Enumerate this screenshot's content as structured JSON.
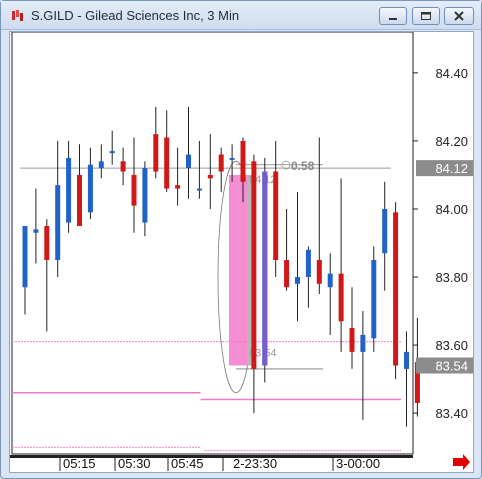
{
  "window": {
    "title": "S.GILD - Gilead Sciences Inc, 3 Min"
  },
  "price_tags": {
    "last": "84.12",
    "marker": "83.54"
  },
  "measure": {
    "top_label": "84.12",
    "bottom_label": "83.54",
    "diff_label": "0.58"
  },
  "colors": {
    "up": "#1f63c9",
    "down": "#d01818",
    "pink": "#f279c9",
    "tag_bg": "#8c8c8c",
    "ref_line": "#9a9a9a"
  },
  "chart_data": {
    "type": "candlestick",
    "y_ticks": [
      84.4,
      84.2,
      84.0,
      83.8,
      83.6,
      83.4
    ],
    "y_tick_labels": [
      "84.40",
      "84.20",
      "84.00",
      "83.80",
      "83.60",
      "83.40"
    ],
    "x_tick_labels": [
      "05:15",
      "05:30",
      "05:45",
      "2-23:30",
      "3-00:00"
    ],
    "ylim": [
      83.28,
      84.52
    ],
    "reference_line": 84.12,
    "candles": [
      {
        "o": 83.77,
        "h": 83.95,
        "l": 83.69,
        "c": 83.95
      },
      {
        "o": 83.93,
        "h": 84.06,
        "l": 83.84,
        "c": 83.94
      },
      {
        "o": 83.95,
        "h": 83.97,
        "l": 83.64,
        "c": 83.85
      },
      {
        "o": 83.85,
        "h": 84.2,
        "l": 83.8,
        "c": 84.07
      },
      {
        "o": 83.96,
        "h": 84.2,
        "l": 83.93,
        "c": 84.15
      },
      {
        "o": 84.1,
        "h": 84.19,
        "l": 83.96,
        "c": 83.95
      },
      {
        "o": 83.99,
        "h": 84.18,
        "l": 83.97,
        "c": 84.13
      },
      {
        "o": 84.12,
        "h": 84.19,
        "l": 84.09,
        "c": 84.14
      },
      {
        "o": 84.17,
        "h": 84.23,
        "l": 84.13,
        "c": 84.17
      },
      {
        "o": 84.14,
        "h": 84.18,
        "l": 84.07,
        "c": 84.11
      },
      {
        "o": 84.1,
        "h": 84.21,
        "l": 83.93,
        "c": 84.01
      },
      {
        "o": 83.96,
        "h": 84.14,
        "l": 83.92,
        "c": 84.12
      },
      {
        "o": 84.22,
        "h": 84.3,
        "l": 84.09,
        "c": 84.11
      },
      {
        "o": 84.21,
        "h": 84.29,
        "l": 84.05,
        "c": 84.06
      },
      {
        "o": 84.07,
        "h": 84.18,
        "l": 84.01,
        "c": 84.06
      },
      {
        "o": 84.12,
        "h": 84.3,
        "l": 84.03,
        "c": 84.16
      },
      {
        "o": 84.06,
        "h": 84.2,
        "l": 84.03,
        "c": 84.06
      },
      {
        "o": 84.1,
        "h": 84.22,
        "l": 84.0,
        "c": 84.09
      },
      {
        "o": 84.16,
        "h": 84.18,
        "l": 84.05,
        "c": 84.11
      },
      {
        "o": 84.15,
        "h": 84.19,
        "l": 84.08,
        "c": 84.15
      },
      {
        "o": 84.2,
        "h": 84.21,
        "l": 84.02,
        "c": 84.08
      },
      {
        "o": 84.14,
        "h": 84.16,
        "l": 83.4,
        "c": 83.53
      },
      {
        "o": 83.54,
        "h": 84.15,
        "l": 83.49,
        "c": 84.11
      },
      {
        "o": 84.11,
        "h": 84.2,
        "l": 83.8,
        "c": 83.85
      },
      {
        "o": 83.85,
        "h": 84.0,
        "l": 83.76,
        "c": 83.77
      },
      {
        "o": 83.78,
        "h": 84.05,
        "l": 83.67,
        "c": 83.8
      },
      {
        "o": 83.8,
        "h": 83.89,
        "l": 83.71,
        "c": 83.88
      },
      {
        "o": 83.85,
        "h": 84.21,
        "l": 83.75,
        "c": 83.78
      },
      {
        "o": 83.77,
        "h": 83.87,
        "l": 83.63,
        "c": 83.81
      },
      {
        "o": 83.81,
        "h": 84.09,
        "l": 83.58,
        "c": 83.67
      },
      {
        "o": 83.65,
        "h": 83.77,
        "l": 83.53,
        "c": 83.58
      },
      {
        "o": 83.58,
        "h": 83.7,
        "l": 83.38,
        "c": 83.63
      },
      {
        "o": 83.62,
        "h": 83.89,
        "l": 83.58,
        "c": 83.85
      },
      {
        "o": 83.87,
        "h": 84.08,
        "l": 83.76,
        "c": 84.0
      },
      {
        "o": 83.99,
        "h": 84.02,
        "l": 83.5,
        "c": 83.54
      },
      {
        "o": 83.53,
        "h": 83.64,
        "l": 83.36,
        "c": 83.58
      },
      {
        "o": 83.55,
        "h": 83.68,
        "l": 83.39,
        "c": 83.43
      }
    ],
    "pink_lines": [
      {
        "y": 83.61,
        "from": 0,
        "to": 1,
        "dashed": true
      },
      {
        "y": 83.46,
        "from": 0,
        "to": 0.47,
        "dashed": false
      },
      {
        "y": 83.44,
        "from": 0.47,
        "to": 1,
        "dashed": false
      },
      {
        "y": 83.3,
        "from": 0,
        "to": 0.47,
        "dashed": true
      },
      {
        "y": 83.29,
        "from": 0.48,
        "to": 1,
        "dashed": true
      }
    ]
  }
}
